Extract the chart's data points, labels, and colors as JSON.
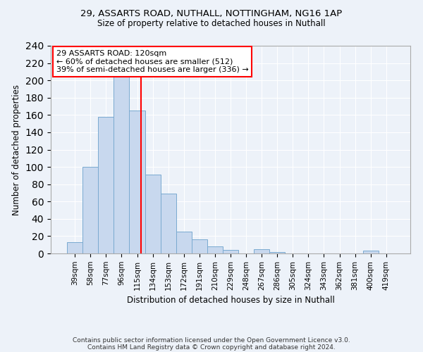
{
  "title_line1": "29, ASSARTS ROAD, NUTHALL, NOTTINGHAM, NG16 1AP",
  "title_line2": "Size of property relative to detached houses in Nuthall",
  "xlabel": "Distribution of detached houses by size in Nuthall",
  "ylabel": "Number of detached properties",
  "bar_labels": [
    "39sqm",
    "58sqm",
    "77sqm",
    "96sqm",
    "115sqm",
    "134sqm",
    "153sqm",
    "172sqm",
    "191sqm",
    "210sqm",
    "229sqm",
    "248sqm",
    "267sqm",
    "286sqm",
    "305sqm",
    "324sqm",
    "343sqm",
    "362sqm",
    "381sqm",
    "400sqm",
    "419sqm"
  ],
  "bar_values": [
    13,
    100,
    158,
    207,
    165,
    91,
    69,
    25,
    16,
    8,
    4,
    0,
    5,
    2,
    0,
    0,
    0,
    0,
    0,
    3,
    0
  ],
  "bar_color": "#c8d8ee",
  "bar_edge_color": "#7aaad0",
  "annotation_label": "29 ASSARTS ROAD: 120sqm",
  "annotation_line1": "← 60% of detached houses are smaller (512)",
  "annotation_line2": "39% of semi-detached houses are larger (336) →",
  "annotation_box_color": "white",
  "annotation_box_edge_color": "red",
  "vline_color": "red",
  "ylim": [
    0,
    240
  ],
  "yticks": [
    0,
    20,
    40,
    60,
    80,
    100,
    120,
    140,
    160,
    180,
    200,
    220,
    240
  ],
  "footnote_line1": "Contains HM Land Registry data © Crown copyright and database right 2024.",
  "footnote_line2": "Contains public sector information licensed under the Open Government Licence v3.0.",
  "background_color": "#edf2f9",
  "grid_color": "#ffffff",
  "bar_width": 1.0,
  "vline_pos": 4.26
}
